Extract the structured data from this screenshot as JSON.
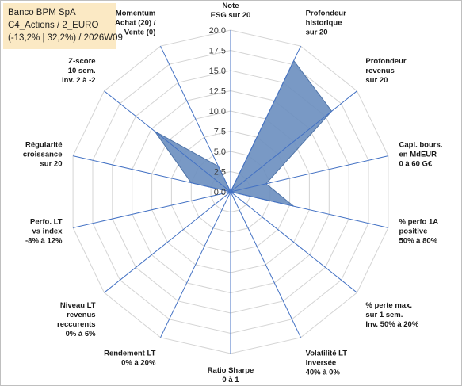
{
  "header": {
    "line1": "Banco BPM SpA",
    "line2": "C4_Actions / 2_EURO",
    "line3": "(-13,2% | 32,2%) / 2026W09"
  },
  "chart_data": {
    "type": "radar",
    "scale": {
      "min": 0,
      "max": 20,
      "step": 2.5
    },
    "tick_labels": [
      "0,0",
      "2,5",
      "5,0",
      "7,5",
      "10,0",
      "12,5",
      "15,0",
      "17,5",
      "20,0"
    ],
    "axes": [
      {
        "label": [
          "Note",
          "ESG sur 20"
        ]
      },
      {
        "label": [
          "Profondeur",
          "historique",
          "sur 20"
        ]
      },
      {
        "label": [
          "Profondeur",
          "revenus",
          "sur 20"
        ]
      },
      {
        "label": [
          "Capi. bours.",
          "en MdEUR",
          "0 à 60 G€"
        ]
      },
      {
        "label": [
          "% perfo 1A",
          "positive",
          "50% à 80%"
        ]
      },
      {
        "label": [
          "% perte max.",
          "sur 1 sem.",
          "Inv. 50% à 20%"
        ]
      },
      {
        "label": [
          "Volatilité LT",
          "inversée",
          "40% à 0%"
        ]
      },
      {
        "label": [
          "Ratio Sharpe",
          "0 à 1"
        ]
      },
      {
        "label": [
          "Rendement LT",
          "0% à 20%"
        ]
      },
      {
        "label": [
          "Niveau LT",
          "revenus",
          "reccurents",
          "0% à 6%"
        ]
      },
      {
        "label": [
          "Perfo. LT",
          "vs index",
          "-8% à 12%"
        ]
      },
      {
        "label": [
          "Régularité",
          "croissance",
          "sur 20"
        ]
      },
      {
        "label": [
          "Z-score",
          "10 sem.",
          "Inv. 2 à -2"
        ]
      },
      {
        "label": [
          "Momentum",
          "Achat (20) /",
          "Vente (0)"
        ]
      }
    ],
    "values": [
      0,
      18,
      16,
      4.5,
      8,
      0,
      0,
      0,
      0,
      0,
      0,
      5,
      12,
      3.5
    ],
    "series_color": "#6a8ebf",
    "grid": true
  }
}
